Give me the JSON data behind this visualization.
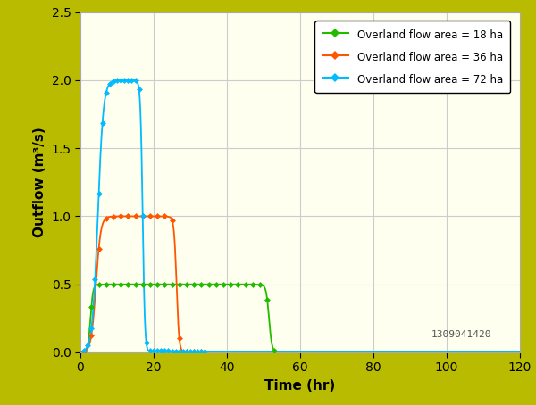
{
  "background_color": "#b8bb00",
  "plot_bg_color": "#fffff0",
  "xlabel": "Time (hr)",
  "ylabel": "Outflow (m³/s)",
  "xlim": [
    0,
    120
  ],
  "ylim": [
    0,
    2.5
  ],
  "xticks": [
    0,
    20,
    40,
    60,
    80,
    100,
    120
  ],
  "yticks": [
    0,
    0.5,
    1.0,
    1.5,
    2.0,
    2.5
  ],
  "grid_color": "#cccccc",
  "watermark": "1309041420",
  "series": [
    {
      "label": "Overland flow area = 18 ha",
      "color": "#22bb00",
      "peak": 0.5,
      "rise_start": 1.0,
      "rise_end": 4.5,
      "flat_end": 49.5,
      "fall_end": 53.5,
      "marker_step": 2.0
    },
    {
      "label": "Overland flow area = 36 ha",
      "color": "#ff5500",
      "peak": 1.0,
      "rise_start": 1.0,
      "rise_end": 7.5,
      "flat_end": 24.5,
      "fall_end": 28.0,
      "marker_step": 2.0
    },
    {
      "label": "Overland flow area = 72 ha",
      "color": "#00bbff",
      "peak": 2.0,
      "rise_start": 1.0,
      "rise_end": 8.5,
      "flat_end": 15.5,
      "fall_end": 18.5,
      "marker_step": 1.0
    }
  ]
}
